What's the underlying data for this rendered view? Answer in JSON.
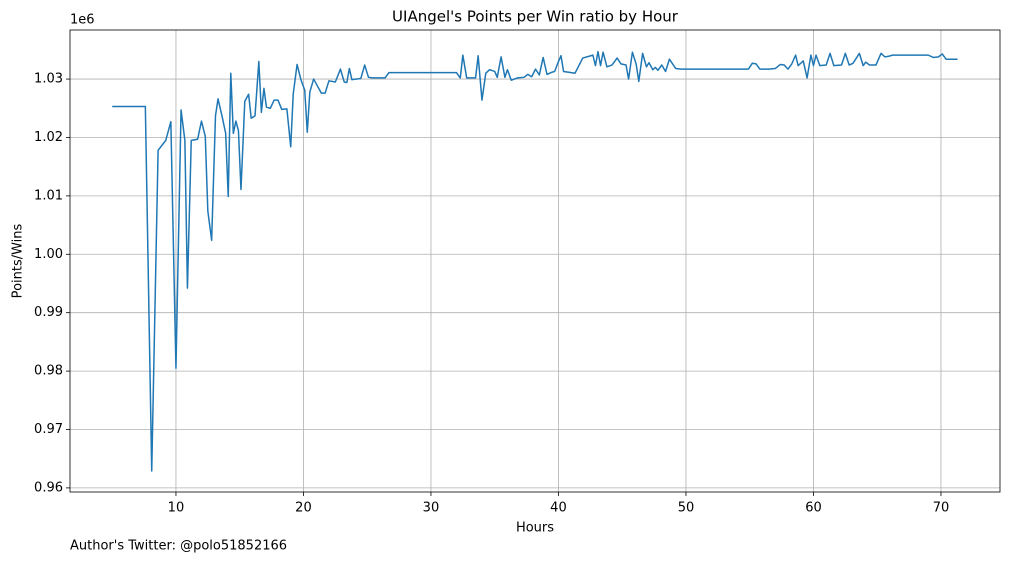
{
  "chart_data": {
    "type": "line",
    "title": "UIAngel's Points per Win ratio by Hour",
    "x_label": "Hours",
    "y_label": "Points/Wins",
    "y_offset_label": "1e6",
    "annotation": "Author's Twitter: @polo51852166",
    "grid": true,
    "x": [
      5,
      7.6,
      8.1,
      8.6,
      9.2,
      9.6,
      10.0,
      10.4,
      10.7,
      10.9,
      11.2,
      11.7,
      12.0,
      12.3,
      12.5,
      12.8,
      13.1,
      13.3,
      13.6,
      13.9,
      14.1,
      14.3,
      14.5,
      14.7,
      14.9,
      15.1,
      15.4,
      15.7,
      15.9,
      16.2,
      16.5,
      16.7,
      16.9,
      17.1,
      17.4,
      17.7,
      18.0,
      18.3,
      18.7,
      19.0,
      19.2,
      19.5,
      19.8,
      20.1,
      20.3,
      20.5,
      20.8,
      21.1,
      21.4,
      21.7,
      22.0,
      22.5,
      22.9,
      23.2,
      23.4,
      23.6,
      23.8,
      24.5,
      24.8,
      25.1,
      25.4,
      26.4,
      26.7,
      32.0,
      32.3,
      32.5,
      32.8,
      33.5,
      33.7,
      34.0,
      34.3,
      34.6,
      35.0,
      35.2,
      35.5,
      35.8,
      36.0,
      36.3,
      36.8,
      37.3,
      37.6,
      37.9,
      38.2,
      38.5,
      38.8,
      39.1,
      39.4,
      39.7,
      40.0,
      40.2,
      40.4,
      41.0,
      41.3,
      41.9,
      42.4,
      42.7,
      42.9,
      43.1,
      43.3,
      43.5,
      43.8,
      44.2,
      44.6,
      44.9,
      45.3,
      45.5,
      45.8,
      46.1,
      46.3,
      46.6,
      46.9,
      47.1,
      47.4,
      47.6,
      47.8,
      48.1,
      48.4,
      48.7,
      49.2,
      49.6,
      54.9,
      55.2,
      55.5,
      55.8,
      56.5,
      57.0,
      57.4,
      57.7,
      58.0,
      58.3,
      58.6,
      58.8,
      59.2,
      59.5,
      59.8,
      60.0,
      60.2,
      60.5,
      61.0,
      61.3,
      61.6,
      62.2,
      62.5,
      62.8,
      63.1,
      63.6,
      63.9,
      64.1,
      64.4,
      64.9,
      65.3,
      65.6,
      65.9,
      66.2,
      69.0,
      69.4,
      69.8,
      70.1,
      70.4,
      71.3
    ],
    "series": [
      {
        "color": "#1f77b4",
        "values": [
          1.0253,
          1.0253,
          0.9629,
          1.0178,
          1.0195,
          1.0227,
          0.9805,
          1.0247,
          1.0195,
          0.9942,
          1.0195,
          1.0197,
          1.0228,
          1.0202,
          1.0074,
          1.0024,
          1.0237,
          1.0266,
          1.0238,
          1.0207,
          1.0099,
          1.031,
          1.0207,
          1.0228,
          1.0212,
          1.0111,
          1.0262,
          1.0274,
          1.0233,
          1.0237,
          1.033,
          1.0243,
          1.0284,
          1.0252,
          1.025,
          1.0264,
          1.0264,
          1.0248,
          1.0249,
          1.0184,
          1.0275,
          1.0325,
          1.0299,
          1.0281,
          1.0209,
          1.0278,
          1.03,
          1.0288,
          1.0276,
          1.0276,
          1.0297,
          1.0295,
          1.0317,
          1.0295,
          1.0294,
          1.0318,
          1.0299,
          1.0301,
          1.0324,
          1.0303,
          1.0302,
          1.0302,
          1.0311,
          1.0311,
          1.0302,
          1.0341,
          1.0302,
          1.0302,
          1.034,
          1.0264,
          1.031,
          1.0316,
          1.0313,
          1.0303,
          1.0338,
          1.0303,
          1.0316,
          1.0298,
          1.0302,
          1.0303,
          1.0308,
          1.0304,
          1.0317,
          1.0307,
          1.0337,
          1.0308,
          1.0311,
          1.0313,
          1.033,
          1.034,
          1.0313,
          1.0311,
          1.031,
          1.0336,
          1.0339,
          1.0341,
          1.0323,
          1.0347,
          1.0323,
          1.0346,
          1.0321,
          1.0324,
          1.0336,
          1.0326,
          1.0324,
          1.03,
          1.0346,
          1.0325,
          1.0296,
          1.0344,
          1.0321,
          1.0328,
          1.0316,
          1.032,
          1.0315,
          1.0324,
          1.0313,
          1.0334,
          1.0318,
          1.0317,
          1.0317,
          1.0327,
          1.0326,
          1.0317,
          1.0317,
          1.0318,
          1.0325,
          1.0324,
          1.0317,
          1.0326,
          1.0341,
          1.0323,
          1.0331,
          1.0302,
          1.0341,
          1.0323,
          1.0341,
          1.0323,
          1.0324,
          1.0344,
          1.0323,
          1.0324,
          1.0344,
          1.0324,
          1.0327,
          1.0344,
          1.0323,
          1.0329,
          1.0324,
          1.0324,
          1.0344,
          1.0338,
          1.0339,
          1.0341,
          1.0341,
          1.0337,
          1.0338,
          1.0343,
          1.0334,
          1.0334
        ]
      }
    ],
    "xlim": [
      1.69,
      74.63
    ],
    "xticks": [
      10,
      20,
      30,
      40,
      50,
      60,
      70
    ],
    "ylim": [
      0.9593,
      1.0384
    ],
    "yticks": [
      0.96,
      0.97,
      0.98,
      0.99,
      {
        "value": 1,
        "label": "1.00"
      },
      1.01,
      1.02,
      1.03
    ]
  }
}
